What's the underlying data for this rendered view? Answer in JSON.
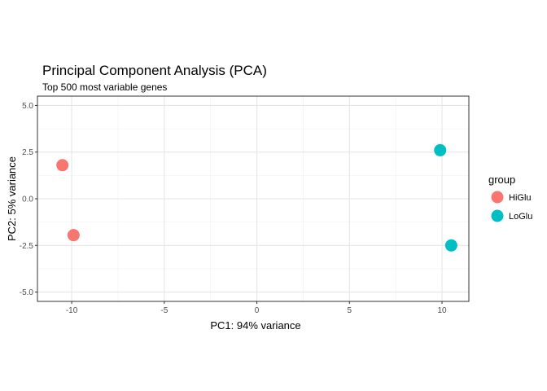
{
  "chart_data": {
    "type": "scatter",
    "title": "Principal Component Analysis (PCA)",
    "subtitle": "Top 500 most variable genes",
    "xlabel": "PC1: 94% variance",
    "ylabel": "PC2: 5% variance",
    "xlim": [
      -11.85,
      11.45
    ],
    "ylim": [
      -5.5,
      5.5
    ],
    "x_ticks": [
      -10,
      -5,
      0,
      5,
      10
    ],
    "x_tick_labels": [
      "-10",
      "-5",
      "0",
      "5",
      "10"
    ],
    "y_ticks": [
      -5,
      -2.5,
      0,
      2.5,
      5
    ],
    "y_tick_labels": [
      "-5.0",
      "-2.5",
      "0.0",
      "2.5",
      "5.0"
    ],
    "grid": true,
    "legend": {
      "title": "group",
      "placement": "right",
      "entries": [
        {
          "label": "HiGlu",
          "color": "#F8766D"
        },
        {
          "label": "LoGlu",
          "color": "#00BFC4"
        }
      ]
    },
    "series": [
      {
        "name": "HiGlu",
        "color": "#F8766D",
        "points": [
          {
            "x": -10.5,
            "y": 1.8
          },
          {
            "x": -9.9,
            "y": -1.95
          }
        ]
      },
      {
        "name": "LoGlu",
        "color": "#00BFC4",
        "points": [
          {
            "x": 9.9,
            "y": 2.6
          },
          {
            "x": 10.5,
            "y": -2.5
          }
        ]
      }
    ]
  }
}
